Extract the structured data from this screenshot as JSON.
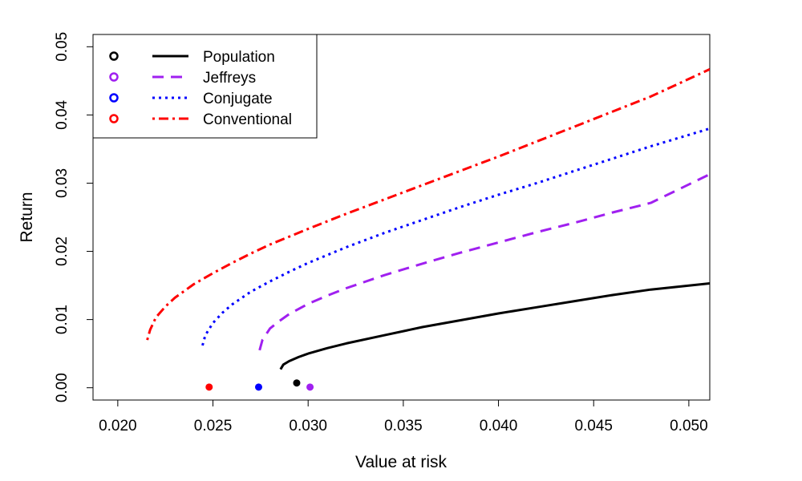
{
  "chart_data": {
    "type": "line",
    "title": "",
    "xlabel": "Value at risk",
    "ylabel": "Return",
    "xlim": [
      0.0187,
      0.0511
    ],
    "ylim": [
      -0.0018,
      0.0518
    ],
    "x_ticks": [
      0.02,
      0.025,
      0.03,
      0.035,
      0.04,
      0.045,
      0.05
    ],
    "x_tick_labels": [
      "0.020",
      "0.025",
      "0.030",
      "0.035",
      "0.040",
      "0.045",
      "0.050"
    ],
    "y_ticks": [
      0.0,
      0.01,
      0.02,
      0.03,
      0.04,
      0.05
    ],
    "y_tick_labels": [
      "0.00",
      "0.01",
      "0.02",
      "0.03",
      "0.04",
      "0.05"
    ],
    "grid": false,
    "legend_position": "top-left",
    "series": [
      {
        "name": "Population",
        "color": "#000000",
        "style": "solid",
        "min_var_point": {
          "x": 0.0294,
          "y": 0.0007
        },
        "x": [
          0.02855,
          0.0287,
          0.029,
          0.0295,
          0.03,
          0.031,
          0.032,
          0.034,
          0.036,
          0.038,
          0.04,
          0.042,
          0.044,
          0.046,
          0.048,
          0.0511
        ],
        "y": [
          0.0027,
          0.0034,
          0.0039,
          0.0045,
          0.005,
          0.0058,
          0.0065,
          0.0077,
          0.0089,
          0.0099,
          0.0109,
          0.0118,
          0.0127,
          0.0136,
          0.0144,
          0.0153
        ]
      },
      {
        "name": "Jeffreys",
        "color": "#a020f0",
        "style": "dashed",
        "min_var_point": {
          "x": 0.0301,
          "y": 0.0001
        },
        "x": [
          0.02745,
          0.0276,
          0.028,
          0.0285,
          0.029,
          0.03,
          0.031,
          0.032,
          0.034,
          0.036,
          0.038,
          0.04,
          0.042,
          0.044,
          0.046,
          0.048,
          0.0511
        ],
        "y": [
          0.0055,
          0.007,
          0.0087,
          0.0098,
          0.0108,
          0.0123,
          0.0135,
          0.0146,
          0.0165,
          0.0182,
          0.0198,
          0.0213,
          0.0228,
          0.0242,
          0.0257,
          0.0271,
          0.0313
        ]
      },
      {
        "name": "Conjugate",
        "color": "#0000ff",
        "style": "dotted",
        "min_var_point": {
          "x": 0.0274,
          "y": 0.0001
        },
        "x": [
          0.02445,
          0.0246,
          0.025,
          0.0255,
          0.026,
          0.027,
          0.028,
          0.029,
          0.03,
          0.032,
          0.034,
          0.036,
          0.038,
          0.04,
          0.042,
          0.044,
          0.046,
          0.048,
          0.0511
        ],
        "y": [
          0.0062,
          0.0077,
          0.0095,
          0.011,
          0.0122,
          0.0141,
          0.0156,
          0.017,
          0.0183,
          0.0206,
          0.0227,
          0.0246,
          0.0265,
          0.0283,
          0.03,
          0.0318,
          0.0336,
          0.0354,
          0.038
        ]
      },
      {
        "name": "Conventional",
        "color": "#ff0000",
        "style": "dotdash",
        "min_var_point": {
          "x": 0.0248,
          "y": 0.0001
        },
        "x": [
          0.02155,
          0.0217,
          0.022,
          0.0225,
          0.023,
          0.024,
          0.025,
          0.026,
          0.027,
          0.028,
          0.03,
          0.032,
          0.034,
          0.036,
          0.038,
          0.04,
          0.042,
          0.044,
          0.046,
          0.048,
          0.0511
        ],
        "y": [
          0.007,
          0.0085,
          0.0103,
          0.0119,
          0.0132,
          0.0152,
          0.0168,
          0.0183,
          0.0197,
          0.021,
          0.0233,
          0.0255,
          0.0276,
          0.0297,
          0.0318,
          0.0339,
          0.0361,
          0.0383,
          0.0405,
          0.0427,
          0.0467
        ]
      }
    ]
  }
}
